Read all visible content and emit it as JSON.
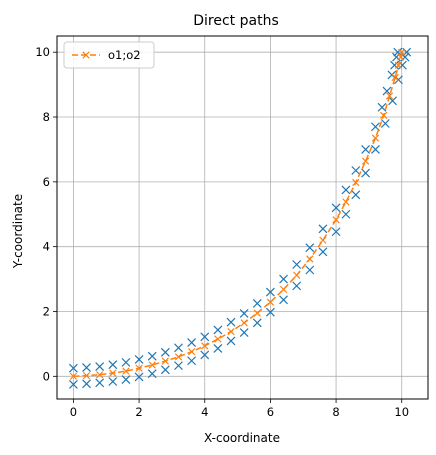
{
  "chart_data": {
    "type": "line",
    "title": "Direct paths",
    "xlabel": "X-coordinate",
    "ylabel": "Y-coordinate",
    "xlim": [
      -0.5,
      10.8
    ],
    "ylim": [
      -0.7,
      10.5
    ],
    "xticks": [
      0,
      2,
      4,
      6,
      8,
      10
    ],
    "yticks": [
      0,
      2,
      4,
      6,
      8,
      10
    ],
    "grid": true,
    "legend_position": "top-left",
    "series": [
      {
        "name": "",
        "color": "#1f77b4",
        "marker": "x",
        "linestyle": "none",
        "role": "upper path",
        "x": [
          0.0,
          0.4,
          0.8,
          1.2,
          1.6,
          2.0,
          2.4,
          2.8,
          3.2,
          3.6,
          4.0,
          4.4,
          4.8,
          5.2,
          5.6,
          6.0,
          6.4,
          6.8,
          7.2,
          7.6,
          8.0,
          8.3,
          8.6,
          8.9,
          9.2,
          9.4,
          9.55,
          9.7,
          9.78,
          9.84,
          9.88
        ],
        "y": [
          0.25,
          0.27,
          0.3,
          0.36,
          0.43,
          0.52,
          0.62,
          0.74,
          0.88,
          1.04,
          1.22,
          1.43,
          1.67,
          1.94,
          2.25,
          2.6,
          3.0,
          3.45,
          3.97,
          4.55,
          5.2,
          5.75,
          6.35,
          7.0,
          7.7,
          8.3,
          8.8,
          9.3,
          9.6,
          9.85,
          10.0
        ]
      },
      {
        "name": "",
        "color": "#1f77b4",
        "marker": "x",
        "linestyle": "none",
        "role": "lower path",
        "x": [
          0.0,
          0.4,
          0.8,
          1.2,
          1.6,
          2.0,
          2.4,
          2.8,
          3.2,
          3.6,
          4.0,
          4.4,
          4.8,
          5.2,
          5.6,
          6.0,
          6.4,
          6.8,
          7.2,
          7.6,
          8.0,
          8.3,
          8.6,
          8.9,
          9.2,
          9.5,
          9.72,
          9.9,
          10.02,
          10.1,
          10.15
        ],
        "y": [
          -0.25,
          -0.23,
          -0.2,
          -0.16,
          -0.1,
          -0.02,
          0.08,
          0.2,
          0.33,
          0.48,
          0.66,
          0.86,
          1.09,
          1.35,
          1.65,
          1.98,
          2.36,
          2.79,
          3.28,
          3.84,
          4.46,
          5.0,
          5.6,
          6.27,
          7.0,
          7.8,
          8.5,
          9.15,
          9.6,
          9.85,
          10.0
        ]
      },
      {
        "name": "o1;o2",
        "color": "#ff7f0e",
        "marker": "x",
        "linestyle": "dashed",
        "role": "centre path",
        "x": [
          0.0,
          0.4,
          0.8,
          1.2,
          1.6,
          2.0,
          2.4,
          2.8,
          3.2,
          3.6,
          4.0,
          4.4,
          4.8,
          5.2,
          5.6,
          6.0,
          6.4,
          6.8,
          7.2,
          7.6,
          8.0,
          8.3,
          8.6,
          8.9,
          9.2,
          9.45,
          9.63,
          9.8,
          9.9,
          9.97,
          10.0
        ],
        "y": [
          0.0,
          0.02,
          0.05,
          0.1,
          0.16,
          0.25,
          0.35,
          0.47,
          0.6,
          0.76,
          0.94,
          1.15,
          1.38,
          1.65,
          1.95,
          2.29,
          2.68,
          3.12,
          3.62,
          4.2,
          4.83,
          5.38,
          5.98,
          6.64,
          7.35,
          8.05,
          8.65,
          9.22,
          9.6,
          9.85,
          10.0
        ]
      }
    ]
  }
}
